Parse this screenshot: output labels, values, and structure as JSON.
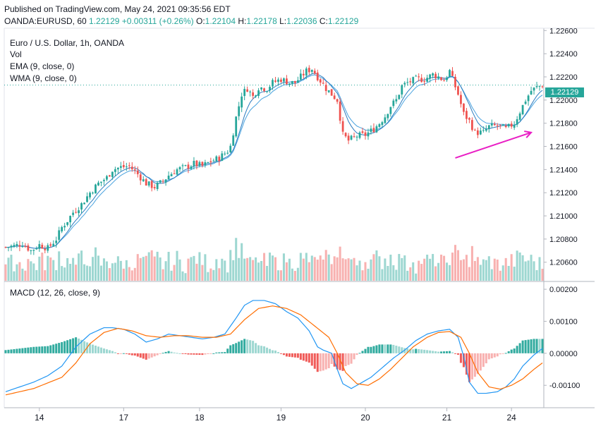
{
  "header": {
    "published": "Published on TradingView.com, May 24, 2021 09:35:56 EDT",
    "symbol": "OANDA:EURUSD, 60",
    "last": "1.22129",
    "change": "+0.00311 (+0.26%)",
    "o_label": "O:",
    "o": "1.22104",
    "h_label": "H:",
    "h": "1.22178",
    "l_label": "L:",
    "l": "1.22036",
    "c_label": "C:",
    "c": "1.22129"
  },
  "legend": {
    "title": "Euro / U.S. Dollar, 1h, OANDA",
    "vol": "Vol",
    "ema": "EMA (9, close, 0)",
    "wma": "WMA (9, close, 0)",
    "macd": "MACD (12, 26, close, 9)"
  },
  "price_tag": "1.22129",
  "colors": {
    "up": "#26a69a",
    "down": "#ef5350",
    "ema": "#4aa3df",
    "wma": "#2b7bbf",
    "macd_line": "#2196f3",
    "signal_line": "#ff6d00",
    "arrow": "#e91ec4"
  },
  "chart_data": [
    {
      "type": "candlestick",
      "title": "Euro / U.S. Dollar, 1h, OANDA",
      "price_ticks": [
        "1.22600",
        "1.22400",
        "1.22200",
        "1.22000",
        "1.21800",
        "1.21600",
        "1.21400",
        "1.21200",
        "1.21000",
        "1.20800",
        "1.20600"
      ],
      "x_ticks": [
        "14",
        "17",
        "18",
        "19",
        "20",
        "21",
        "24"
      ],
      "ylim": [
        1.2044,
        1.2262
      ],
      "close_path": [
        [
          0,
          1.2073
        ],
        [
          3,
          1.2074
        ],
        [
          6,
          1.2076
        ],
        [
          9,
          1.207
        ],
        [
          12,
          1.2075
        ],
        [
          15,
          1.2072
        ],
        [
          18,
          1.208
        ],
        [
          20,
          1.209
        ],
        [
          22,
          1.2096
        ],
        [
          24,
          1.2103
        ],
        [
          27,
          1.211
        ],
        [
          30,
          1.212
        ],
        [
          33,
          1.2128
        ],
        [
          36,
          1.2133
        ],
        [
          38,
          1.214
        ],
        [
          41,
          1.2142
        ],
        [
          44,
          1.2143
        ],
        [
          47,
          1.2136
        ],
        [
          50,
          1.2128
        ],
        [
          53,
          1.2125
        ],
        [
          56,
          1.213
        ],
        [
          58,
          1.2135
        ],
        [
          61,
          1.214
        ],
        [
          64,
          1.2142
        ],
        [
          67,
          1.2145
        ],
        [
          70,
          1.2143
        ],
        [
          73,
          1.2147
        ],
        [
          76,
          1.215
        ],
        [
          79,
          1.2156
        ],
        [
          80,
          1.216
        ],
        [
          82,
          1.2185
        ],
        [
          84,
          1.2205
        ],
        [
          86,
          1.221
        ],
        [
          88,
          1.2203
        ],
        [
          90,
          1.2211
        ],
        [
          93,
          1.221
        ],
        [
          95,
          1.2215
        ],
        [
          98,
          1.2218
        ],
        [
          101,
          1.2215
        ],
        [
          103,
          1.2215
        ],
        [
          105,
          1.222
        ],
        [
          107,
          1.2225
        ],
        [
          109,
          1.2227
        ],
        [
          111,
          1.222
        ],
        [
          114,
          1.221
        ],
        [
          116,
          1.2205
        ],
        [
          118,
          1.22
        ],
        [
          120,
          1.217
        ],
        [
          122,
          1.2165
        ],
        [
          125,
          1.2169
        ],
        [
          128,
          1.217
        ],
        [
          131,
          1.2175
        ],
        [
          133,
          1.218
        ],
        [
          135,
          1.2186
        ],
        [
          137,
          1.2195
        ],
        [
          139,
          1.22
        ],
        [
          141,
          1.2212
        ],
        [
          143,
          1.2215
        ],
        [
          146,
          1.2218
        ],
        [
          149,
          1.2218
        ],
        [
          152,
          1.2222
        ],
        [
          154,
          1.222
        ],
        [
          156,
          1.2217
        ],
        [
          158,
          1.2225
        ],
        [
          159,
          1.2218
        ],
        [
          161,
          1.2205
        ],
        [
          163,
          1.2188
        ],
        [
          165,
          1.2182
        ],
        [
          167,
          1.2172
        ],
        [
          170,
          1.2172
        ],
        [
          172,
          1.2177
        ],
        [
          175,
          1.2178
        ],
        [
          178,
          1.2175
        ],
        [
          181,
          1.218
        ],
        [
          183,
          1.219
        ],
        [
          185,
          1.22
        ],
        [
          187,
          1.2208
        ],
        [
          189,
          1.2211
        ],
        [
          191,
          1.2213
        ]
      ],
      "x_count": 192
    },
    {
      "type": "bar",
      "name": "Vol",
      "note": "volume bars colored by candle direction"
    },
    {
      "type": "line",
      "title": "MACD (12, 26, close, 9)",
      "y_ticks": [
        "0.00200",
        "0.00100",
        "0.00000",
        "-0.00100"
      ],
      "ylim": [
        -0.0017,
        0.0022
      ],
      "macd": [
        [
          0,
          -0.0012
        ],
        [
          5,
          -0.00105
        ],
        [
          10,
          -0.0009
        ],
        [
          15,
          -0.0007
        ],
        [
          20,
          -0.0004
        ],
        [
          25,
          0.0002
        ],
        [
          30,
          0.0006
        ],
        [
          35,
          0.0008
        ],
        [
          38,
          0.0008
        ],
        [
          42,
          0.00075
        ],
        [
          46,
          0.0006
        ],
        [
          50,
          0.00035
        ],
        [
          54,
          0.00045
        ],
        [
          58,
          0.0006
        ],
        [
          62,
          0.00055
        ],
        [
          66,
          0.0005
        ],
        [
          70,
          0.00045
        ],
        [
          74,
          0.0005
        ],
        [
          78,
          0.0006
        ],
        [
          82,
          0.0011
        ],
        [
          85,
          0.0015
        ],
        [
          88,
          0.00165
        ],
        [
          92,
          0.00165
        ],
        [
          96,
          0.00155
        ],
        [
          100,
          0.0013
        ],
        [
          104,
          0.0011
        ],
        [
          108,
          0.0007
        ],
        [
          111,
          0.0002
        ],
        [
          113,
          0.0001
        ],
        [
          116,
          0.0
        ],
        [
          118,
          -0.0005
        ],
        [
          120,
          -0.00095
        ],
        [
          123,
          -0.0011
        ],
        [
          126,
          -0.00095
        ],
        [
          130,
          -0.00075
        ],
        [
          134,
          -0.00045
        ],
        [
          138,
          -0.00015
        ],
        [
          142,
          0.0001
        ],
        [
          146,
          0.0004
        ],
        [
          150,
          0.0006
        ],
        [
          154,
          0.0007
        ],
        [
          158,
          0.00075
        ],
        [
          161,
          0.0005
        ],
        [
          163,
          -0.0001
        ],
        [
          165,
          -0.0009
        ],
        [
          168,
          -0.00125
        ],
        [
          171,
          -0.00125
        ],
        [
          175,
          -0.0012
        ],
        [
          178,
          -0.00105
        ],
        [
          181,
          -0.0008
        ],
        [
          184,
          -0.0004
        ],
        [
          188,
          -5e-05
        ],
        [
          191,
          0.00015
        ]
      ],
      "signal": [
        [
          0,
          -0.0013
        ],
        [
          10,
          -0.0011
        ],
        [
          20,
          -0.00075
        ],
        [
          25,
          -0.0003
        ],
        [
          30,
          0.0003
        ],
        [
          35,
          0.00065
        ],
        [
          40,
          0.00078
        ],
        [
          45,
          0.0007
        ],
        [
          50,
          0.00055
        ],
        [
          55,
          0.0005
        ],
        [
          60,
          0.00055
        ],
        [
          65,
          0.00055
        ],
        [
          70,
          0.0005
        ],
        [
          75,
          0.0005
        ],
        [
          80,
          0.0006
        ],
        [
          85,
          0.00105
        ],
        [
          90,
          0.0014
        ],
        [
          95,
          0.00148
        ],
        [
          100,
          0.0014
        ],
        [
          105,
          0.0012
        ],
        [
          110,
          0.00085
        ],
        [
          115,
          0.0005
        ],
        [
          118,
          0.0
        ],
        [
          121,
          -0.0006
        ],
        [
          125,
          -0.00095
        ],
        [
          129,
          -0.001
        ],
        [
          133,
          -0.0008
        ],
        [
          137,
          -0.0005
        ],
        [
          141,
          -0.00015
        ],
        [
          145,
          0.0002
        ],
        [
          150,
          0.0005
        ],
        [
          154,
          0.00065
        ],
        [
          158,
          0.00068
        ],
        [
          162,
          0.0005
        ],
        [
          165,
          0.0
        ],
        [
          168,
          -0.0006
        ],
        [
          172,
          -0.00105
        ],
        [
          176,
          -0.00112
        ],
        [
          180,
          -0.001
        ],
        [
          184,
          -0.0008
        ],
        [
          188,
          -0.0005
        ],
        [
          191,
          -0.0003
        ]
      ]
    }
  ]
}
